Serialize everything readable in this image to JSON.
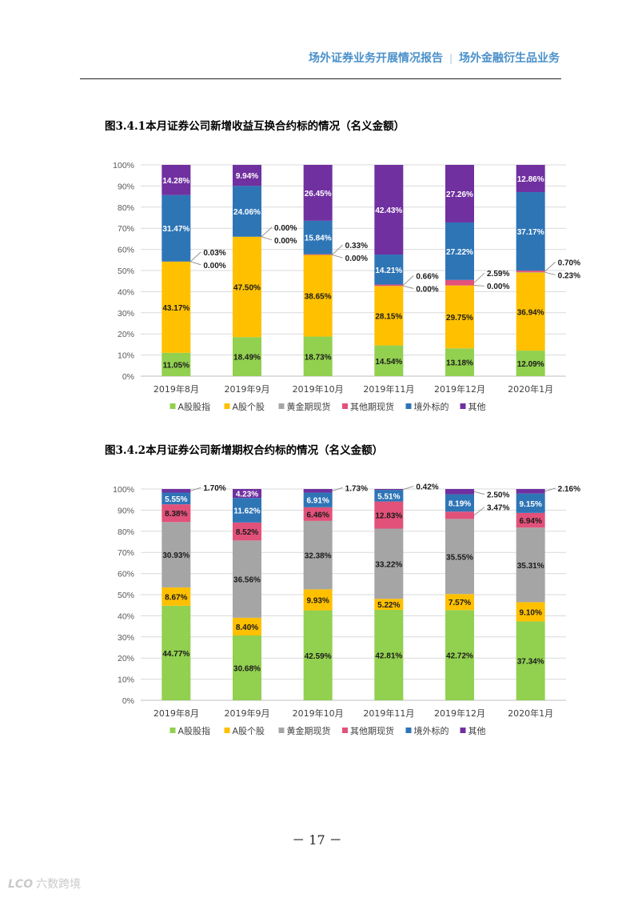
{
  "header": {
    "left": "场外证券业务开展情况报告",
    "separator": "|",
    "right": "场外金融衍生品业务"
  },
  "page_number": "－ 17 －",
  "watermark": {
    "mark": "LCO",
    "text": "六数跨境"
  },
  "colors": {
    "A股股指": "#92d050",
    "A股个股": "#ffc000",
    "黄金期现货": "#a5a5a5",
    "其他期现货": "#e2517a",
    "境外标的": "#2e75b6",
    "其他": "#7030a0"
  },
  "chart_data": [
    {
      "type": "bar",
      "stacked": true,
      "title": "图3.4.1本月证券公司新增收益互换合约标的情况（名义金额）",
      "categories": [
        "2019年8月",
        "2019年9月",
        "2019年10月",
        "2019年11月",
        "2019年12月",
        "2020年1月"
      ],
      "yticks": [
        "0%",
        "10%",
        "20%",
        "30%",
        "40%",
        "50%",
        "60%",
        "70%",
        "80%",
        "90%",
        "100%"
      ],
      "ylim": [
        0,
        100
      ],
      "legend_position": "bottom",
      "series": [
        {
          "name": "A股股指",
          "values": [
            11.05,
            18.49,
            18.73,
            14.54,
            13.18,
            12.09
          ],
          "labels": [
            "11.05%",
            "18.49%",
            "18.73%",
            "14.54%",
            "13.18%",
            "12.09%"
          ]
        },
        {
          "name": "A股个股",
          "values": [
            43.17,
            47.5,
            38.65,
            28.15,
            29.75,
            36.94
          ],
          "labels": [
            "43.17%",
            "47.50%",
            "38.65%",
            "28.15%",
            "29.75%",
            "36.94%"
          ]
        },
        {
          "name": "黄金期现货",
          "values": [
            0.0,
            0.0,
            0.0,
            0.0,
            0.0,
            0.23
          ],
          "labels": [
            "0.00%",
            "0.00%",
            "0.00%",
            "0.00%",
            "0.00%",
            "0.23%"
          ]
        },
        {
          "name": "其他期现货",
          "values": [
            0.03,
            0.0,
            0.33,
            0.66,
            2.59,
            0.7
          ],
          "labels": [
            "0.03%",
            "0.00%",
            "0.33%",
            "0.66%",
            "2.59%",
            "0.70%"
          ]
        },
        {
          "name": "境外标的",
          "values": [
            31.47,
            24.06,
            15.84,
            14.21,
            27.22,
            37.17
          ],
          "labels": [
            "31.47%",
            "24.06%",
            "15.84%",
            "14.21%",
            "27.22%",
            "37.17%"
          ]
        },
        {
          "name": "其他",
          "values": [
            14.28,
            9.94,
            26.45,
            42.43,
            27.26,
            12.86
          ],
          "labels": [
            "14.28%",
            "9.94%",
            "26.45%",
            "42.43%",
            "27.26%",
            "12.86%"
          ]
        }
      ]
    },
    {
      "type": "bar",
      "stacked": true,
      "title": "图3.4.2本月证券公司新增期权合约标的情况（名义金额）",
      "categories": [
        "2019年8月",
        "2019年9月",
        "2019年10月",
        "2019年11月",
        "2019年12月",
        "2020年1月"
      ],
      "yticks": [
        "0%",
        "10%",
        "20%",
        "30%",
        "40%",
        "50%",
        "60%",
        "70%",
        "80%",
        "90%",
        "100%"
      ],
      "ylim": [
        0,
        100
      ],
      "legend_position": "bottom",
      "series": [
        {
          "name": "A股股指",
          "values": [
            44.77,
            30.68,
            42.59,
            42.81,
            42.72,
            37.34
          ],
          "labels": [
            "44.77%",
            "30.68%",
            "42.59%",
            "42.81%",
            "42.72%",
            "37.34%"
          ]
        },
        {
          "name": "A股个股",
          "values": [
            8.67,
            8.4,
            9.93,
            5.22,
            7.57,
            9.1
          ],
          "labels": [
            "8.67%",
            "8.40%",
            "9.93%",
            "5.22%",
            "7.57%",
            "9.10%"
          ]
        },
        {
          "name": "黄金期现货",
          "values": [
            30.93,
            36.56,
            32.38,
            33.22,
            35.55,
            35.31
          ],
          "labels": [
            "30.93%",
            "36.56%",
            "32.38%",
            "33.22%",
            "35.55%",
            "35.31%"
          ]
        },
        {
          "name": "其他期现货",
          "values": [
            8.38,
            8.52,
            6.46,
            12.83,
            3.47,
            6.94
          ],
          "labels": [
            "8.38%",
            "8.52%",
            "6.46%",
            "12.83%",
            "3.47%",
            "6.94%"
          ]
        },
        {
          "name": "境外标的",
          "values": [
            5.55,
            11.62,
            6.91,
            5.51,
            8.19,
            9.15
          ],
          "labels": [
            "5.55%",
            "11.62%",
            "6.91%",
            "5.51%",
            "8.19%",
            "9.15%"
          ]
        },
        {
          "name": "其他",
          "values": [
            1.7,
            4.23,
            1.73,
            0.42,
            2.5,
            2.16
          ],
          "labels": [
            "1.70%",
            "4.23%",
            "1.73%",
            "0.42%",
            "2.50%",
            "2.16%"
          ]
        }
      ]
    }
  ]
}
